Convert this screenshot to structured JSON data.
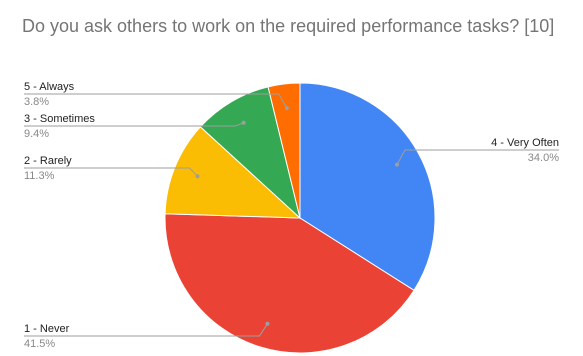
{
  "chart_data": {
    "type": "pie",
    "title": "Do you ask others to work on the required performance tasks? [10]",
    "start_angle_deg": 0,
    "direction": "clockwise",
    "slices": [
      {
        "label": "4 - Very Often",
        "value": 34.0,
        "percent_label": "34.0%",
        "color": "#4285F4"
      },
      {
        "label": "1 - Never",
        "value": 41.5,
        "percent_label": "41.5%",
        "color": "#EA4335"
      },
      {
        "label": "2 - Rarely",
        "value": 11.3,
        "percent_label": "11.3%",
        "color": "#FBBC04"
      },
      {
        "label": "3 - Sometimes",
        "value": 9.4,
        "percent_label": "9.4%",
        "color": "#34A853"
      },
      {
        "label": "5 - Always",
        "value": 3.8,
        "percent_label": "3.8%",
        "color": "#FF6D01"
      }
    ],
    "legend": "none"
  }
}
